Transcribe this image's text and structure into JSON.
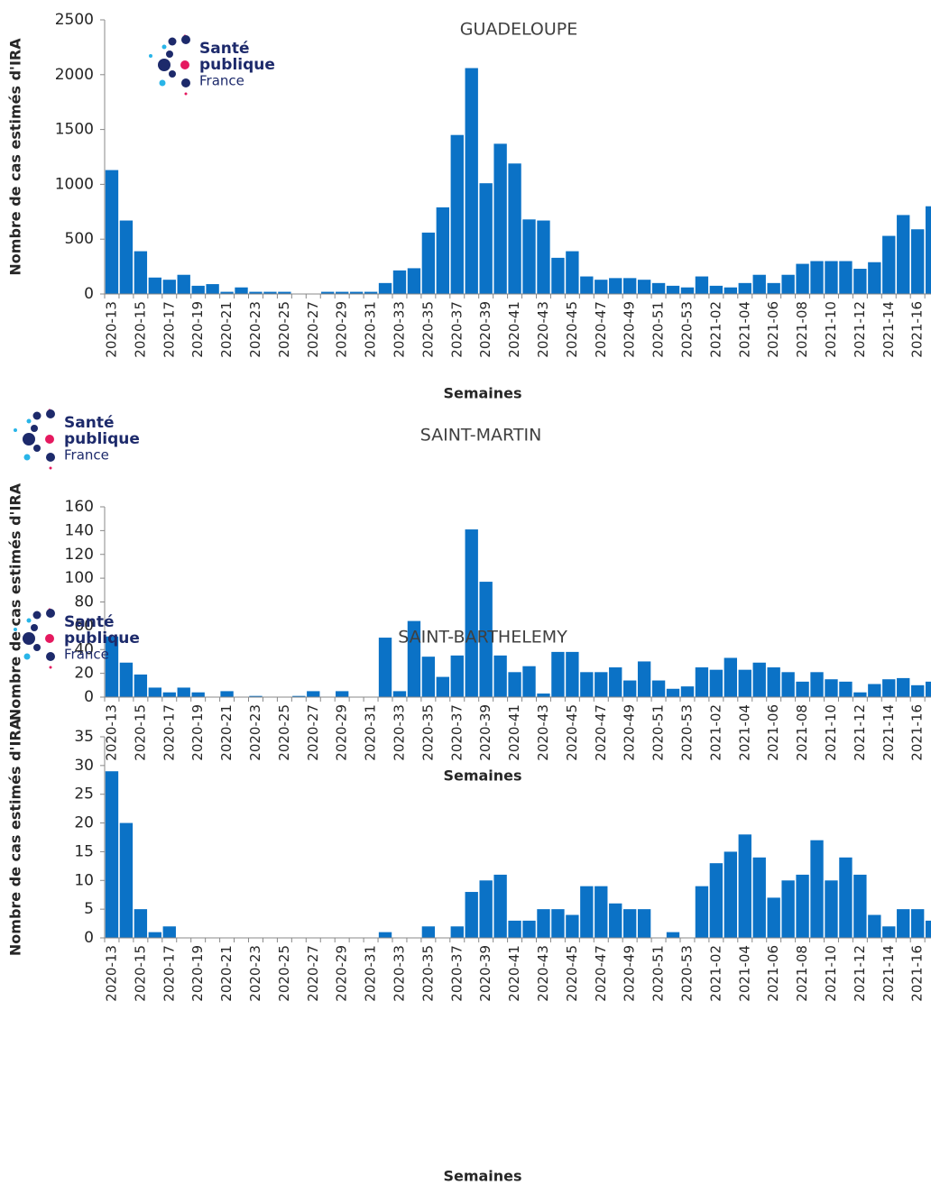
{
  "logo": {
    "line1": "Santé",
    "line2": "publique",
    "line3": "France"
  },
  "chart_data": [
    {
      "type": "bar",
      "title": "GUADELOUPE",
      "x_label": "Semaines",
      "y_label": "Nombre de cas estimés d'IRA",
      "color": "#0b72c6",
      "categories": [
        "2020-13",
        null,
        "2020-15",
        null,
        "2020-17",
        null,
        "2020-19",
        null,
        "2020-21",
        null,
        "2020-23",
        null,
        "2020-25",
        null,
        "2020-27",
        null,
        "2020-29",
        null,
        "2020-31",
        null,
        "2020-33",
        null,
        "2020-35",
        null,
        "2020-37",
        null,
        "2020-39",
        null,
        "2020-41",
        null,
        "2020-43",
        null,
        "2020-45",
        null,
        "2020-47",
        null,
        "2020-49",
        null,
        "2020-51",
        null,
        "2020-53",
        null,
        "2021-02",
        null,
        "2021-04",
        null,
        "2021-06",
        null,
        "2021-08",
        null,
        "2021-10",
        null,
        "2021-12",
        null,
        "2021-14",
        null,
        "2021-16",
        null
      ],
      "values": [
        1130,
        670,
        390,
        150,
        130,
        175,
        75,
        90,
        20,
        60,
        20,
        20,
        20,
        0,
        0,
        20,
        20,
        20,
        20,
        100,
        215,
        235,
        560,
        790,
        1450,
        2060,
        1010,
        1370,
        1190,
        680,
        670,
        330,
        390,
        160,
        130,
        145,
        145,
        130,
        100,
        75,
        60,
        160,
        75,
        60,
        100,
        175,
        100,
        175,
        275,
        300,
        300,
        300,
        230,
        290,
        530,
        720,
        590,
        800
      ],
      "ylim": [
        0,
        2500
      ],
      "yticks": [
        0,
        500,
        1000,
        1500,
        2000,
        2500
      ]
    },
    {
      "type": "bar",
      "title": "SAINT-MARTIN",
      "x_label": "Semaines",
      "y_label": "Nombre de cas estimés d'IRA",
      "color": "#0b72c6",
      "categories": [
        "2020-13",
        null,
        "2020-15",
        null,
        "2020-17",
        null,
        "2020-19",
        null,
        "2020-21",
        null,
        "2020-23",
        null,
        "2020-25",
        null,
        "2020-27",
        null,
        "2020-29",
        null,
        "2020-31",
        null,
        "2020-33",
        null,
        "2020-35",
        null,
        "2020-37",
        null,
        "2020-39",
        null,
        "2020-41",
        null,
        "2020-43",
        null,
        "2020-45",
        null,
        "2020-47",
        null,
        "2020-49",
        null,
        "2020-51",
        null,
        "2020-53",
        null,
        "2021-02",
        null,
        "2021-04",
        null,
        "2021-06",
        null,
        "2021-08",
        null,
        "2021-10",
        null,
        "2021-12",
        null,
        "2021-14",
        null,
        "2021-16",
        null
      ],
      "values": [
        51,
        29,
        19,
        8,
        4,
        8,
        4,
        0,
        5,
        0,
        1,
        0,
        0,
        1,
        5,
        0,
        5,
        0,
        0,
        50,
        5,
        64,
        34,
        17,
        35,
        141,
        97,
        35,
        21,
        26,
        3,
        38,
        38,
        21,
        21,
        25,
        14,
        30,
        14,
        7,
        9,
        25,
        23,
        33,
        23,
        29,
        25,
        21,
        13,
        21,
        15,
        13,
        4,
        11,
        15,
        16,
        10,
        13
      ],
      "ylim": [
        0,
        160
      ],
      "yticks": [
        0,
        20,
        40,
        60,
        80,
        100,
        120,
        140,
        160
      ]
    },
    {
      "type": "bar",
      "title": "SAINT-BARTHELEMY",
      "x_label": "Semaines",
      "y_label": "Nombre de cas estimés d'IRA",
      "color": "#0b72c6",
      "categories": [
        "2020-13",
        null,
        "2020-15",
        null,
        "2020-17",
        null,
        "2020-19",
        null,
        "2020-21",
        null,
        "2020-23",
        null,
        "2020-25",
        null,
        "2020-27",
        null,
        "2020-29",
        null,
        "2020-31",
        null,
        "2020-33",
        null,
        "2020-35",
        null,
        "2020-37",
        null,
        "2020-39",
        null,
        "2020-41",
        null,
        "2020-43",
        null,
        "2020-45",
        null,
        "2020-47",
        null,
        "2020-49",
        null,
        "2020-51",
        null,
        "2020-53",
        null,
        "2021-02",
        null,
        "2021-04",
        null,
        "2021-06",
        null,
        "2021-08",
        null,
        "2021-10",
        null,
        "2021-12",
        null,
        "2021-14",
        null,
        "2021-16",
        null
      ],
      "values": [
        29,
        20,
        5,
        1,
        2,
        0,
        0,
        0,
        0,
        0,
        0,
        0,
        0,
        0,
        0,
        0,
        0,
        0,
        0,
        1,
        0,
        0,
        2,
        0,
        2,
        8,
        10,
        11,
        3,
        3,
        5,
        5,
        4,
        9,
        9,
        6,
        5,
        5,
        0,
        1,
        0,
        9,
        13,
        15,
        18,
        14,
        7,
        10,
        11,
        17,
        10,
        14,
        11,
        4,
        2,
        5,
        5,
        3
      ],
      "ylim": [
        0,
        35
      ],
      "yticks": [
        0,
        5,
        10,
        15,
        20,
        25,
        30,
        35
      ]
    }
  ]
}
